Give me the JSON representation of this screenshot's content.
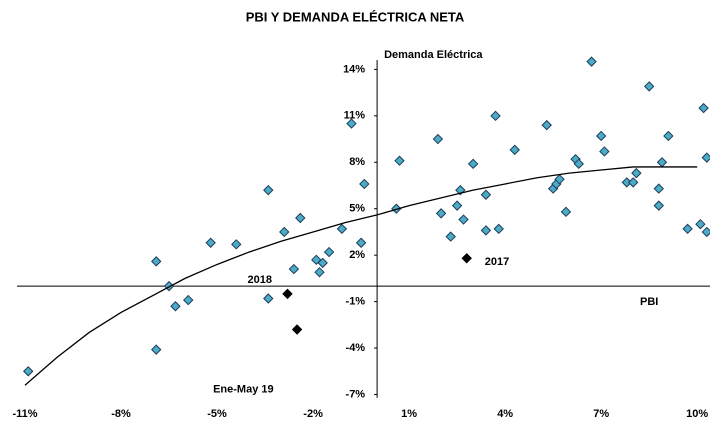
{
  "chart_data": {
    "type": "scatter",
    "title": "PBI Y DEMANDA ELÉCTRICA NETA",
    "x_label": "PBI",
    "y_label": "Demanda Eléctrica",
    "xlim": [
      -11.25,
      10.4
    ],
    "ylim": [
      -7.4,
      14.8
    ],
    "xticks": [
      {
        "value": -11,
        "label": "-11%"
      },
      {
        "value": -8,
        "label": "-8%"
      },
      {
        "value": -5,
        "label": "-5%"
      },
      {
        "value": -2,
        "label": "-2%"
      },
      {
        "value": 1,
        "label": "1%"
      },
      {
        "value": 4,
        "label": "4%"
      },
      {
        "value": 7,
        "label": "7%"
      },
      {
        "value": 10,
        "label": "10%"
      }
    ],
    "yticks": [
      {
        "value": -7,
        "label": "-7%"
      },
      {
        "value": -4,
        "label": "-4%"
      },
      {
        "value": -1,
        "label": "-1%"
      },
      {
        "value": 2,
        "label": "2%"
      },
      {
        "value": 5,
        "label": "5%"
      },
      {
        "value": 8,
        "label": "8%"
      },
      {
        "value": 11,
        "label": "11%"
      },
      {
        "value": 14,
        "label": "14%"
      }
    ],
    "series": [
      {
        "type": "scatter",
        "color": "#4bacc6",
        "x": [
          -10.9,
          -6.9,
          -6.9,
          -6.5,
          -6.3,
          -5.9,
          -5.2,
          -4.4,
          -3.4,
          -3.4,
          -2.9,
          -2.6,
          -2.4,
          -1.9,
          -1.8,
          -1.7,
          -1.5,
          -1.1,
          -0.8,
          -0.5,
          -0.4,
          0.6,
          0.7,
          1.9,
          2.0,
          2.3,
          2.5,
          2.6,
          2.7,
          3.0,
          3.4,
          3.4,
          3.7,
          3.8,
          4.3,
          5.3,
          5.5,
          5.6,
          5.7,
          5.9,
          6.2,
          6.3,
          6.7,
          7.0,
          7.1,
          7.8,
          8.0,
          8.1,
          8.5,
          8.8,
          8.8,
          8.9,
          9.1,
          9.7,
          10.1,
          10.2,
          10.3,
          10.3
        ],
        "values": [
          -5.5,
          1.6,
          -4.1,
          0.0,
          -1.3,
          -0.9,
          2.8,
          2.7,
          6.2,
          -0.8,
          3.5,
          1.1,
          4.4,
          1.7,
          0.9,
          1.5,
          2.2,
          3.7,
          10.5,
          2.8,
          6.6,
          5.0,
          8.1,
          9.5,
          4.7,
          3.2,
          5.2,
          6.2,
          4.3,
          7.9,
          3.6,
          5.9,
          11.0,
          3.7,
          8.8,
          10.4,
          6.3,
          6.6,
          6.9,
          4.8,
          8.2,
          7.9,
          14.5,
          9.7,
          8.7,
          6.7,
          6.7,
          7.3,
          12.9,
          6.3,
          5.2,
          8.0,
          9.7,
          3.7,
          4.0,
          11.5,
          8.3,
          3.5
        ]
      },
      {
        "type": "scatter",
        "color": "#000000",
        "x": [
          -2.8,
          -2.5,
          2.8
        ],
        "values": [
          -0.5,
          -2.8,
          1.8
        ],
        "labels": [
          "2018",
          "Ene-May 19",
          "2017"
        ]
      },
      {
        "type": "line",
        "color": "#000000",
        "x": [
          -11,
          -10,
          -9,
          -8,
          -7,
          -6,
          -5,
          -4,
          -3,
          -2,
          -1,
          0,
          1,
          2,
          3,
          4,
          5,
          6,
          7,
          8,
          9,
          10
        ],
        "values": [
          -6.4,
          -4.6,
          -3.0,
          -1.7,
          -0.6,
          0.5,
          1.4,
          2.2,
          2.9,
          3.5,
          4.1,
          4.6,
          5.2,
          5.7,
          6.2,
          6.6,
          7.0,
          7.3,
          7.5,
          7.7,
          7.7,
          7.7
        ]
      }
    ]
  }
}
